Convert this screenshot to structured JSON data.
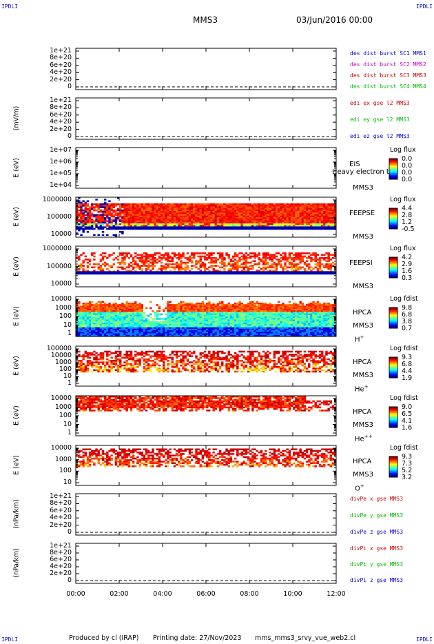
{
  "corner_labels": [
    "IPDLI",
    "IPDLI",
    "IPDLI",
    "IPDLI"
  ],
  "header": {
    "spacecraft": "MMS3",
    "date": "03/Jun/2016 00:00"
  },
  "footer": {
    "produced": "Produced by cl (IRAP)",
    "printing": "Printing date: 27/Nov/2023",
    "script": "mms_mms3_srvy_vue_web2.cl"
  },
  "chart_data": [
    {
      "type": "line",
      "panel": 1,
      "yticks": [
        "1e+21",
        "8e+20",
        "6e+20",
        "4e+20",
        "2e+20",
        "0"
      ],
      "xlim": [
        "00:00",
        "12:00"
      ],
      "xticks": [
        "00:00",
        "02:00",
        "04:00",
        "06:00",
        "08:00",
        "10:00",
        "12:00"
      ],
      "series": [
        {
          "name": "des dist burst SC1 MMS1",
          "color": "#0000cc",
          "values": []
        },
        {
          "name": "des dist burst SC2 MMS2",
          "color": "#cc00cc",
          "values": []
        },
        {
          "name": "des dist burst SC3 MMS3",
          "color": "#cc0000",
          "values": []
        },
        {
          "name": "des dist burst SC4 MMS4",
          "color": "#00bb00",
          "values": []
        }
      ],
      "zero_line": "dashed"
    },
    {
      "type": "line",
      "panel": 2,
      "ylabel": "(mV/m)",
      "yticks": [
        "1e+21",
        "8e+20",
        "6e+20",
        "4e+20",
        "2e+20",
        "0"
      ],
      "series": [
        {
          "name": "edi ex gse l2 MMS3",
          "color": "#cc0000",
          "values": []
        },
        {
          "name": "edi ey gse l2 MMS3",
          "color": "#00bb00",
          "values": []
        },
        {
          "name": "edi ez gse l2 MMS3",
          "color": "#0000cc",
          "values": []
        }
      ],
      "zero_line": "dashed"
    },
    {
      "type": "heatmap",
      "panel": 3,
      "ylabel": "E (eV)",
      "yscale": "log",
      "yticks": [
        "1e+07",
        "1e+06",
        "1e+05",
        "1e+04"
      ],
      "instrument": [
        "EIS",
        "MMS3"
      ],
      "overlay_text": "Heavy electron to",
      "colorbar": {
        "title": "Log flux",
        "labels": [
          "0.0",
          "0.0",
          "0.0",
          "0.0"
        ]
      },
      "values": []
    },
    {
      "type": "heatmap",
      "panel": 4,
      "ylabel": "E (eV)",
      "yscale": "log",
      "yticks": [
        "1000000",
        "100000",
        "10000"
      ],
      "instrument": [
        "FEEPSE",
        "MMS3"
      ],
      "colorbar": {
        "title": "Log flux",
        "labels": [
          "4.4",
          "2.8",
          "1.2",
          "-0.5"
        ]
      }
    },
    {
      "type": "heatmap",
      "panel": 5,
      "ylabel": "E (eV)",
      "yscale": "log",
      "yticks": [
        "1000000",
        "100000",
        "10000"
      ],
      "instrument": [
        "FEEPSI",
        "MMS3"
      ],
      "colorbar": {
        "title": "Log flux",
        "labels": [
          "4.2",
          "2.9",
          "1.6",
          "0.3"
        ]
      }
    },
    {
      "type": "heatmap",
      "panel": 6,
      "ylabel": "E (eV)",
      "yscale": "log",
      "yticks": [
        "10000",
        "1000",
        "100",
        "10",
        "1"
      ],
      "instrument": [
        "HPCA",
        "MMS3"
      ],
      "species": "H",
      "charge": "+",
      "colorbar": {
        "title": "Log fdist",
        "labels": [
          "9.8",
          "6.8",
          "3.8",
          "0.7"
        ]
      }
    },
    {
      "type": "heatmap",
      "panel": 7,
      "ylabel": "E (eV)",
      "yscale": "log",
      "yticks": [
        "100000",
        "10000",
        "1000",
        "100",
        "10",
        "1"
      ],
      "instrument": [
        "HPCA",
        "MMS3"
      ],
      "species": "He",
      "charge": "+",
      "colorbar": {
        "title": "Log fdist",
        "labels": [
          "9.3",
          "6.8",
          "4.4",
          "1.9"
        ]
      }
    },
    {
      "type": "heatmap",
      "panel": 8,
      "ylabel": "E (eV)",
      "yscale": "log",
      "yticks": [
        "10000",
        "1000",
        "100",
        "10",
        "1"
      ],
      "instrument": [
        "HPCA",
        "MMS3"
      ],
      "species": "He",
      "charge": "++",
      "colorbar": {
        "title": "Log fdist",
        "labels": [
          "9.0",
          "6.5",
          "4.1",
          "1.6"
        ]
      }
    },
    {
      "type": "heatmap",
      "panel": 9,
      "ylabel": "E (eV)",
      "yscale": "log",
      "yticks": [
        "10000",
        "1000",
        "100",
        "10"
      ],
      "instrument": [
        "HPCA",
        "MMS3"
      ],
      "species": "O",
      "charge": "+",
      "colorbar": {
        "title": "Log fdist",
        "labels": [
          "9.3",
          "7.3",
          "5.2",
          "3.2"
        ]
      }
    },
    {
      "type": "line",
      "panel": 10,
      "ylabel": "(nPa/km)",
      "yticks": [
        "1e+21",
        "8e+20",
        "6e+20",
        "4e+20",
        "2e+20",
        "0"
      ],
      "series": [
        {
          "name": "divPe x gse MMS3",
          "color": "#cc0000",
          "values": []
        },
        {
          "name": "divPe y gse MMS3",
          "color": "#00bb00",
          "values": []
        },
        {
          "name": "divPe z gse MMS3",
          "color": "#0000cc",
          "values": []
        }
      ],
      "zero_line": "dashed"
    },
    {
      "type": "line",
      "panel": 11,
      "ylabel": "(nPa/km)",
      "yticks": [
        "1e+21",
        "8e+20",
        "6e+20",
        "4e+20",
        "2e+20",
        "0"
      ],
      "series": [
        {
          "name": "divPi x gse MMS3",
          "color": "#cc0000",
          "values": []
        },
        {
          "name": "divPi y gse MMS3",
          "color": "#00bb00",
          "values": []
        },
        {
          "name": "divPi z gse MMS3",
          "color": "#0000cc",
          "values": []
        }
      ],
      "zero_line": "dashed"
    }
  ]
}
